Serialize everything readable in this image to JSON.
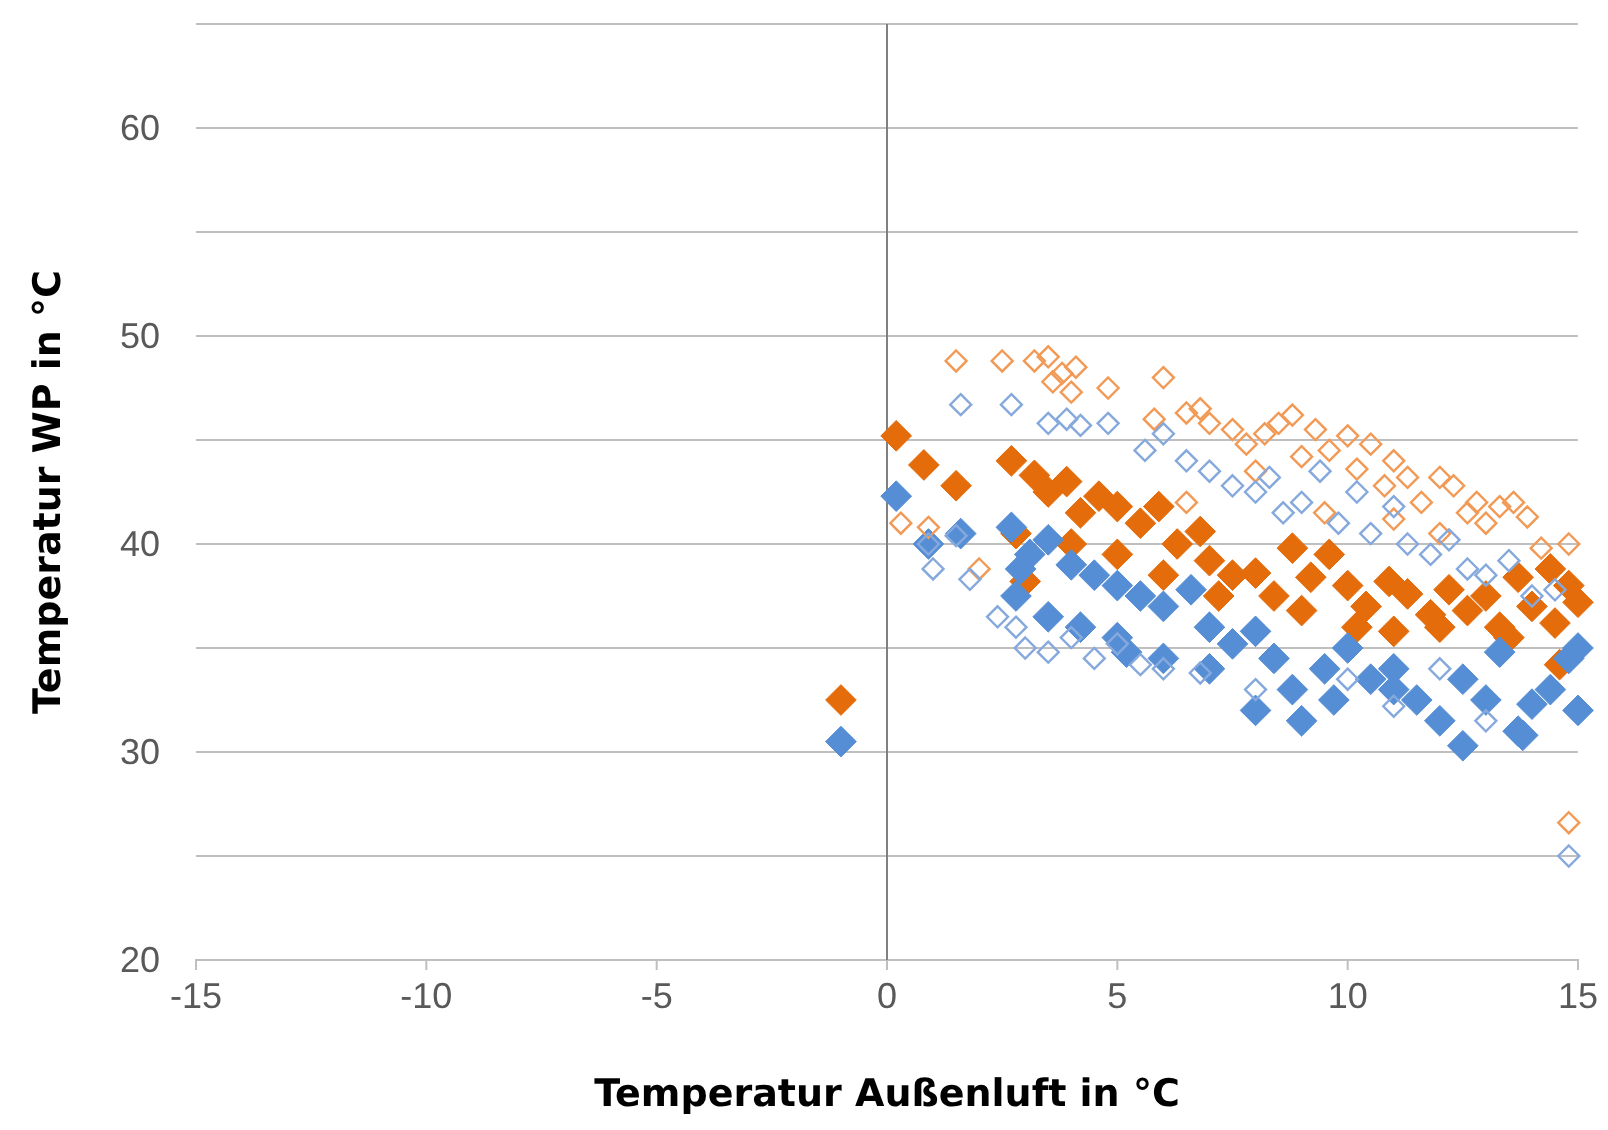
{
  "chart_data": {
    "type": "scatter",
    "xlabel": "Temperatur Außenluft in °C",
    "ylabel": "Temperatur WP in °C",
    "xlim": [
      -15,
      15
    ],
    "xticks": [
      -15,
      -10,
      -5,
      0,
      5,
      10,
      15
    ],
    "ylim": [
      20,
      65
    ],
    "yticks": [
      20,
      {
        "value": 25,
        "label": null
      },
      30,
      {
        "value": 35,
        "label": null
      },
      40,
      {
        "value": 45,
        "label": null
      },
      50,
      {
        "value": 55,
        "label": null
      },
      60,
      {
        "value": 65,
        "label": null
      }
    ],
    "grid": "y",
    "series": [
      {
        "color": "#e46c0a",
        "marker": "diamond",
        "x": [
          -1,
          0.2,
          0.8,
          1.5,
          2.7,
          3.2,
          3.5,
          3.9,
          4.2,
          4.6,
          5,
          5.5,
          5.9,
          6.3,
          6.8,
          7,
          7.5,
          8,
          8.4,
          8.8,
          9.2,
          9.6,
          10,
          10.4,
          10.9,
          11.3,
          11.8,
          12.2,
          12.6,
          13,
          13.3,
          13.7,
          14,
          14.4,
          14.8,
          15,
          2.8,
          4,
          5,
          6,
          7.2,
          9,
          10.2,
          11,
          12,
          13.5,
          14.5,
          3,
          14.6
        ],
        "values": [
          32.5,
          45.2,
          43.8,
          42.8,
          44,
          43.3,
          42.5,
          43,
          41.5,
          42.3,
          41.8,
          41,
          41.8,
          40,
          40.6,
          39.2,
          38.5,
          38.6,
          37.5,
          39.8,
          38.4,
          39.5,
          38,
          37,
          38.2,
          37.6,
          36.6,
          37.8,
          36.8,
          37.5,
          36,
          38.4,
          37,
          38.8,
          38,
          37.2,
          40.5,
          40,
          39.5,
          38.5,
          37.5,
          36.8,
          36,
          35.8,
          36,
          35.5,
          36.2,
          38.2,
          34.2
        ]
      },
      {
        "color": "#558ed5",
        "marker": "diamond",
        "x": [
          -1,
          0.2,
          0.9,
          1.6,
          2.7,
          3.1,
          3.5,
          4,
          4.5,
          5,
          5.5,
          6,
          6.6,
          7,
          7.5,
          8,
          8.4,
          8.8,
          9,
          9.5,
          10,
          10.5,
          11,
          11.5,
          12,
          12.5,
          13,
          13.3,
          13.7,
          14,
          14.4,
          14.8,
          15,
          2.8,
          3.5,
          4.2,
          5,
          6,
          7,
          8,
          9.7,
          11,
          12.5,
          13.8,
          2.9,
          5.2,
          15
        ],
        "values": [
          30.5,
          42.3,
          40,
          40.5,
          40.8,
          39.5,
          40.2,
          39,
          38.5,
          38,
          37.5,
          37,
          37.8,
          36,
          35.2,
          35.8,
          34.5,
          33,
          31.5,
          34,
          35,
          33.5,
          34,
          32.5,
          31.5,
          30.3,
          32.5,
          34.8,
          31,
          32.3,
          33,
          34.5,
          32,
          37.5,
          36.5,
          36,
          35.5,
          34.5,
          34,
          32,
          32.5,
          33,
          33.5,
          30.8,
          38.8,
          34.8,
          35
        ]
      },
      {
        "color": "#f29a55",
        "marker": "diamond-open",
        "x": [
          0.3,
          0.9,
          1.5,
          2.5,
          3.2,
          3.5,
          3.8,
          4.1,
          4,
          3.6,
          4.8,
          5.8,
          6,
          6.5,
          6.8,
          7,
          7.5,
          7.8,
          8.2,
          8.5,
          8.8,
          9,
          9.3,
          9.6,
          10,
          10.2,
          10.5,
          10.8,
          11,
          11.3,
          11.6,
          12,
          12.3,
          12.6,
          12.8,
          13,
          13.3,
          13.6,
          13.9,
          14.2,
          14.8,
          14.8,
          9.5,
          11,
          12,
          8,
          6.5,
          2
        ],
        "values": [
          41,
          40.8,
          48.8,
          48.8,
          48.8,
          49,
          48.2,
          48.5,
          47.3,
          47.8,
          47.5,
          46,
          48,
          46.3,
          46.5,
          45.8,
          45.5,
          44.8,
          45.3,
          45.8,
          46.2,
          44.2,
          45.5,
          44.5,
          45.2,
          43.6,
          44.8,
          42.8,
          44,
          43.2,
          42,
          43.2,
          42.8,
          41.5,
          42,
          41,
          41.8,
          42,
          41.3,
          39.8,
          40,
          26.6,
          41.5,
          41.2,
          40.5,
          43.5,
          42,
          38.8
        ]
      },
      {
        "color": "#86a9dd",
        "marker": "diamond-open",
        "x": [
          0.9,
          1,
          1.6,
          2.7,
          3.5,
          3.9,
          4.2,
          4.8,
          5.6,
          6,
          6.5,
          7,
          7.5,
          8,
          8.3,
          8.6,
          9,
          9.4,
          9.8,
          10.2,
          10.5,
          11,
          11.3,
          11.8,
          12.2,
          12.6,
          13,
          13.5,
          14,
          14.5,
          14.8,
          1.8,
          2.4,
          2.8,
          3,
          3.5,
          4,
          4.5,
          5,
          5.5,
          6,
          6.8,
          8,
          10,
          11,
          13,
          12,
          1.5
        ],
        "values": [
          40,
          38.8,
          46.7,
          46.7,
          45.8,
          46,
          45.7,
          45.8,
          44.5,
          45.3,
          44,
          43.5,
          42.8,
          42.5,
          43.2,
          41.5,
          42,
          43.5,
          41,
          42.5,
          40.5,
          41.8,
          40,
          39.5,
          40.2,
          38.8,
          38.5,
          39.2,
          37.5,
          37.8,
          25,
          38.3,
          36.5,
          36,
          35,
          34.8,
          35.5,
          34.5,
          35.2,
          34.2,
          34,
          33.8,
          33,
          33.5,
          32.2,
          31.5,
          34,
          40.4
        ]
      }
    ]
  }
}
